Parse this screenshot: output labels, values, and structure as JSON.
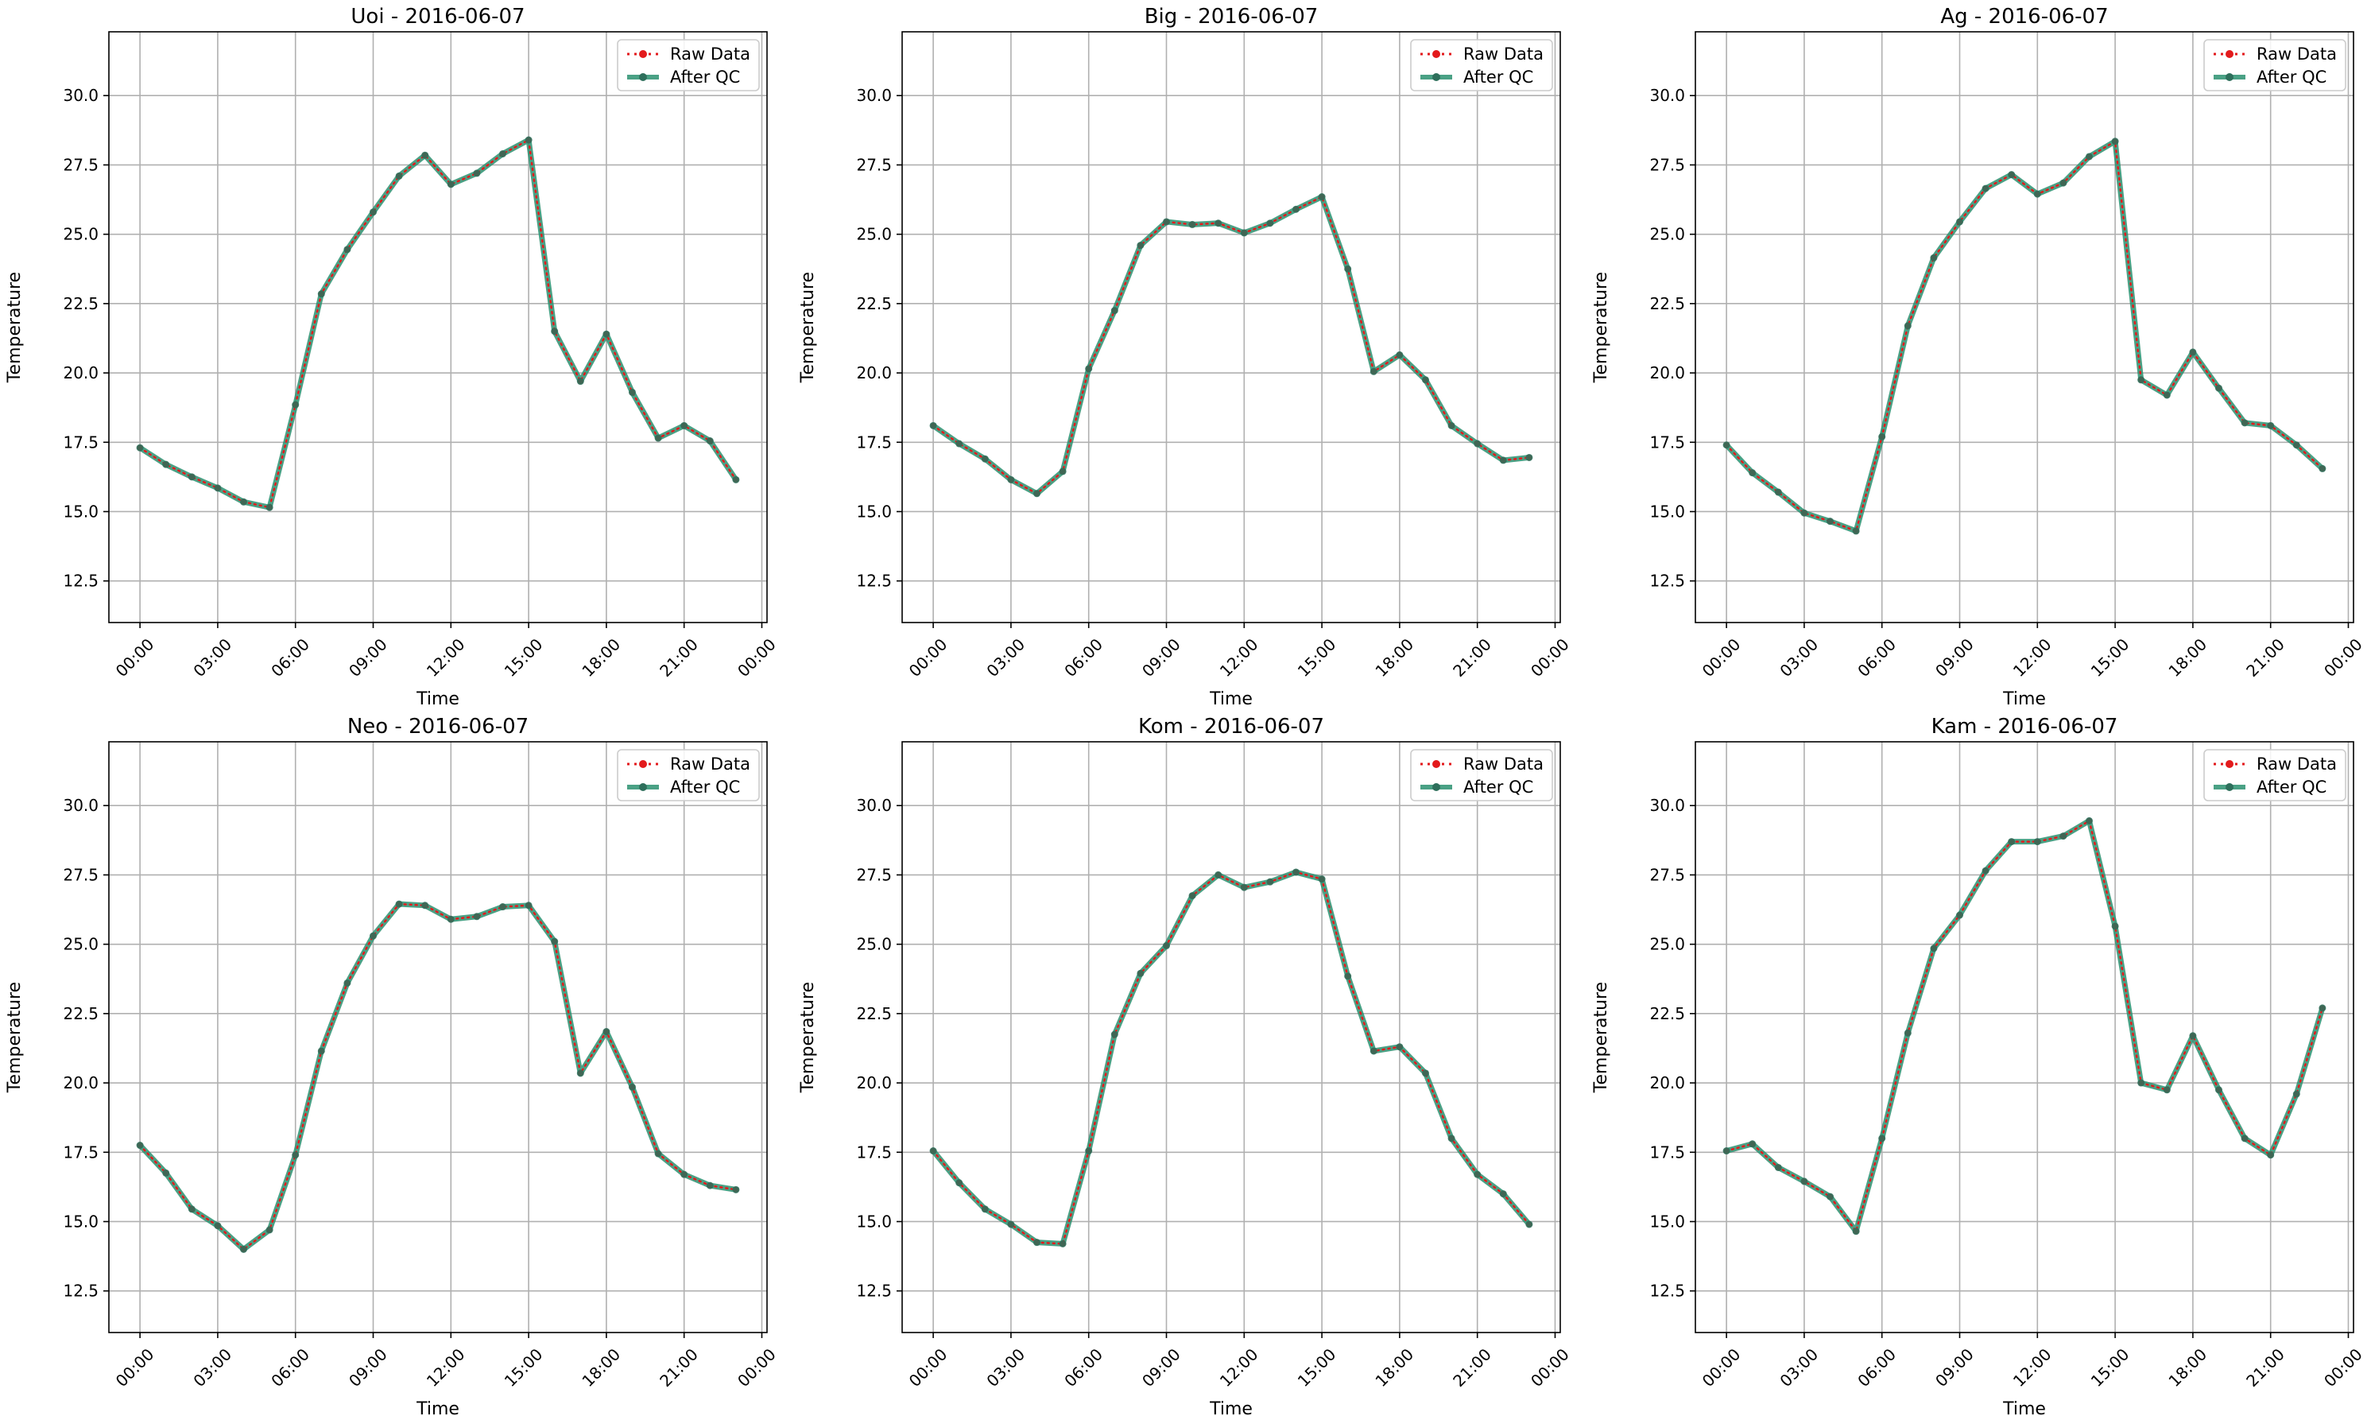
{
  "colors": {
    "raw": "#e31a1c",
    "qc": "#2a9070",
    "grid": "#b0b0b0",
    "axis": "#000000",
    "legend_border": "#cccccc"
  },
  "legend": {
    "raw_label": "Raw Data",
    "qc_label": "After QC",
    "placement": "top-right"
  },
  "chart_data": [
    {
      "type": "line",
      "title": "Uoi - 2016-06-07",
      "xlabel": "Time",
      "ylabel": "Temperature",
      "xticks": [
        "00:00",
        "03:00",
        "06:00",
        "09:00",
        "12:00",
        "15:00",
        "18:00",
        "21:00",
        "00:00"
      ],
      "yticks": [
        "12.5",
        "15.0",
        "17.5",
        "20.0",
        "22.5",
        "25.0",
        "27.5",
        "30.0"
      ],
      "ylim": [
        11.0,
        32.3
      ],
      "xlim_hours": [
        -1.2,
        24.2
      ],
      "grid": true,
      "x_hours": [
        0,
        1,
        2,
        3,
        4,
        5,
        6,
        7,
        8,
        9,
        10,
        11,
        12,
        13,
        14,
        15,
        16,
        17,
        18,
        19,
        20,
        21,
        22,
        23
      ],
      "series": [
        {
          "name": "Raw Data",
          "values": [
            17.3,
            16.7,
            16.25,
            15.85,
            15.35,
            15.15,
            18.85,
            22.85,
            24.45,
            25.8,
            27.1,
            27.85,
            26.8,
            27.2,
            27.9,
            28.4,
            21.5,
            19.7,
            21.4,
            19.3,
            17.65,
            18.1,
            17.55,
            16.15
          ]
        },
        {
          "name": "After QC",
          "values": [
            17.3,
            16.7,
            16.25,
            15.85,
            15.35,
            15.15,
            18.85,
            22.85,
            24.45,
            25.8,
            27.1,
            27.85,
            26.8,
            27.2,
            27.9,
            28.4,
            21.5,
            19.7,
            21.4,
            19.3,
            17.65,
            18.1,
            17.55,
            16.15
          ]
        }
      ]
    },
    {
      "type": "line",
      "title": "Big - 2016-06-07",
      "xlabel": "Time",
      "ylabel": "Temperature",
      "xticks": [
        "00:00",
        "03:00",
        "06:00",
        "09:00",
        "12:00",
        "15:00",
        "18:00",
        "21:00",
        "00:00"
      ],
      "yticks": [
        "12.5",
        "15.0",
        "17.5",
        "20.0",
        "22.5",
        "25.0",
        "27.5",
        "30.0"
      ],
      "ylim": [
        11.0,
        32.3
      ],
      "xlim_hours": [
        -1.2,
        24.2
      ],
      "grid": true,
      "x_hours": [
        0,
        1,
        2,
        3,
        4,
        5,
        6,
        7,
        8,
        9,
        10,
        11,
        12,
        13,
        14,
        15,
        16,
        17,
        18,
        19,
        20,
        21,
        22,
        23
      ],
      "series": [
        {
          "name": "Raw Data",
          "values": [
            18.1,
            17.45,
            16.9,
            16.15,
            15.65,
            16.45,
            20.15,
            22.25,
            24.6,
            25.45,
            25.35,
            25.4,
            25.05,
            25.4,
            25.9,
            26.35,
            23.75,
            20.05,
            20.65,
            19.75,
            18.1,
            17.45,
            16.85,
            16.95
          ]
        },
        {
          "name": "After QC",
          "values": [
            18.1,
            17.45,
            16.9,
            16.15,
            15.65,
            16.45,
            20.15,
            22.25,
            24.6,
            25.45,
            25.35,
            25.4,
            25.05,
            25.4,
            25.9,
            26.35,
            23.75,
            20.05,
            20.65,
            19.75,
            18.1,
            17.45,
            16.85,
            16.95
          ]
        }
      ]
    },
    {
      "type": "line",
      "title": "Ag - 2016-06-07",
      "xlabel": "Time",
      "ylabel": "Temperature",
      "xticks": [
        "00:00",
        "03:00",
        "06:00",
        "09:00",
        "12:00",
        "15:00",
        "18:00",
        "21:00",
        "00:00"
      ],
      "yticks": [
        "12.5",
        "15.0",
        "17.5",
        "20.0",
        "22.5",
        "25.0",
        "27.5",
        "30.0"
      ],
      "ylim": [
        11.0,
        32.3
      ],
      "xlim_hours": [
        -1.2,
        24.2
      ],
      "grid": true,
      "x_hours": [
        0,
        1,
        2,
        3,
        4,
        5,
        6,
        7,
        8,
        9,
        10,
        11,
        12,
        13,
        14,
        15,
        16,
        17,
        18,
        19,
        20,
        21,
        22,
        23
      ],
      "series": [
        {
          "name": "Raw Data",
          "values": [
            17.4,
            16.4,
            15.7,
            14.95,
            14.65,
            14.3,
            17.7,
            21.7,
            24.15,
            25.45,
            26.65,
            27.15,
            26.45,
            26.85,
            27.8,
            28.35,
            19.75,
            19.2,
            20.75,
            19.45,
            18.2,
            18.1,
            17.4,
            16.55
          ]
        },
        {
          "name": "After QC",
          "values": [
            17.4,
            16.4,
            15.7,
            14.95,
            14.65,
            14.3,
            17.7,
            21.7,
            24.15,
            25.45,
            26.65,
            27.15,
            26.45,
            26.85,
            27.8,
            28.35,
            19.75,
            19.2,
            20.75,
            19.45,
            18.2,
            18.1,
            17.4,
            16.55
          ]
        }
      ]
    },
    {
      "type": "line",
      "title": "Neo - 2016-06-07",
      "xlabel": "Time",
      "ylabel": "Temperature",
      "xticks": [
        "00:00",
        "03:00",
        "06:00",
        "09:00",
        "12:00",
        "15:00",
        "18:00",
        "21:00",
        "00:00"
      ],
      "yticks": [
        "12.5",
        "15.0",
        "17.5",
        "20.0",
        "22.5",
        "25.0",
        "27.5",
        "30.0"
      ],
      "ylim": [
        11.0,
        32.3
      ],
      "xlim_hours": [
        -1.2,
        24.2
      ],
      "grid": true,
      "x_hours": [
        0,
        1,
        2,
        3,
        4,
        5,
        6,
        7,
        8,
        9,
        10,
        11,
        12,
        13,
        14,
        15,
        16,
        17,
        18,
        19,
        20,
        21,
        22,
        23
      ],
      "series": [
        {
          "name": "Raw Data",
          "values": [
            17.75,
            16.75,
            15.45,
            14.85,
            14.0,
            14.7,
            17.4,
            21.15,
            23.6,
            25.3,
            26.45,
            26.4,
            25.9,
            26.0,
            26.35,
            26.4,
            25.1,
            20.35,
            21.85,
            19.85,
            17.45,
            16.7,
            16.3,
            16.15
          ]
        },
        {
          "name": "After QC",
          "values": [
            17.75,
            16.75,
            15.45,
            14.85,
            14.0,
            14.7,
            17.4,
            21.15,
            23.6,
            25.3,
            26.45,
            26.4,
            25.9,
            26.0,
            26.35,
            26.4,
            25.1,
            20.35,
            21.85,
            19.85,
            17.45,
            16.7,
            16.3,
            16.15
          ]
        }
      ]
    },
    {
      "type": "line",
      "title": "Kom - 2016-06-07",
      "xlabel": "Time",
      "ylabel": "Temperature",
      "xticks": [
        "00:00",
        "03:00",
        "06:00",
        "09:00",
        "12:00",
        "15:00",
        "18:00",
        "21:00",
        "00:00"
      ],
      "yticks": [
        "12.5",
        "15.0",
        "17.5",
        "20.0",
        "22.5",
        "25.0",
        "27.5",
        "30.0"
      ],
      "ylim": [
        11.0,
        32.3
      ],
      "xlim_hours": [
        -1.2,
        24.2
      ],
      "grid": true,
      "x_hours": [
        0,
        1,
        2,
        3,
        4,
        5,
        6,
        7,
        8,
        9,
        10,
        11,
        12,
        13,
        14,
        15,
        16,
        17,
        18,
        19,
        20,
        21,
        22,
        23
      ],
      "series": [
        {
          "name": "Raw Data",
          "values": [
            17.55,
            16.4,
            15.45,
            14.9,
            14.25,
            14.2,
            17.55,
            21.75,
            23.95,
            24.95,
            26.75,
            27.5,
            27.05,
            27.25,
            27.6,
            27.35,
            23.85,
            21.15,
            21.3,
            20.35,
            18.0,
            16.7,
            16.0,
            14.9
          ]
        },
        {
          "name": "After QC",
          "values": [
            17.55,
            16.4,
            15.45,
            14.9,
            14.25,
            14.2,
            17.55,
            21.75,
            23.95,
            24.95,
            26.75,
            27.5,
            27.05,
            27.25,
            27.6,
            27.35,
            23.85,
            21.15,
            21.3,
            20.35,
            18.0,
            16.7,
            16.0,
            14.9
          ]
        }
      ]
    },
    {
      "type": "line",
      "title": "Kam - 2016-06-07",
      "xlabel": "Time",
      "ylabel": "Temperature",
      "xticks": [
        "00:00",
        "03:00",
        "06:00",
        "09:00",
        "12:00",
        "15:00",
        "18:00",
        "21:00",
        "00:00"
      ],
      "yticks": [
        "12.5",
        "15.0",
        "17.5",
        "20.0",
        "22.5",
        "25.0",
        "27.5",
        "30.0"
      ],
      "ylim": [
        11.0,
        32.3
      ],
      "xlim_hours": [
        -1.2,
        24.2
      ],
      "grid": true,
      "x_hours": [
        0,
        1,
        2,
        3,
        4,
        5,
        6,
        7,
        8,
        9,
        10,
        11,
        12,
        13,
        14,
        15,
        16,
        17,
        18,
        19,
        20,
        21,
        22,
        23
      ],
      "series": [
        {
          "name": "Raw Data",
          "values": [
            17.55,
            17.8,
            16.95,
            16.45,
            15.9,
            14.65,
            18.0,
            21.8,
            24.85,
            26.05,
            27.65,
            28.7,
            28.7,
            28.9,
            29.45,
            25.65,
            20.0,
            19.75,
            21.7,
            19.75,
            18.0,
            17.4,
            19.6,
            22.7
          ]
        },
        {
          "name": "After QC",
          "values": [
            17.55,
            17.8,
            16.95,
            16.45,
            15.9,
            14.65,
            18.0,
            21.8,
            24.85,
            26.05,
            27.65,
            28.7,
            28.7,
            28.9,
            29.45,
            25.65,
            20.0,
            19.75,
            21.7,
            19.75,
            18.0,
            17.4,
            19.6,
            22.7
          ]
        }
      ]
    }
  ]
}
